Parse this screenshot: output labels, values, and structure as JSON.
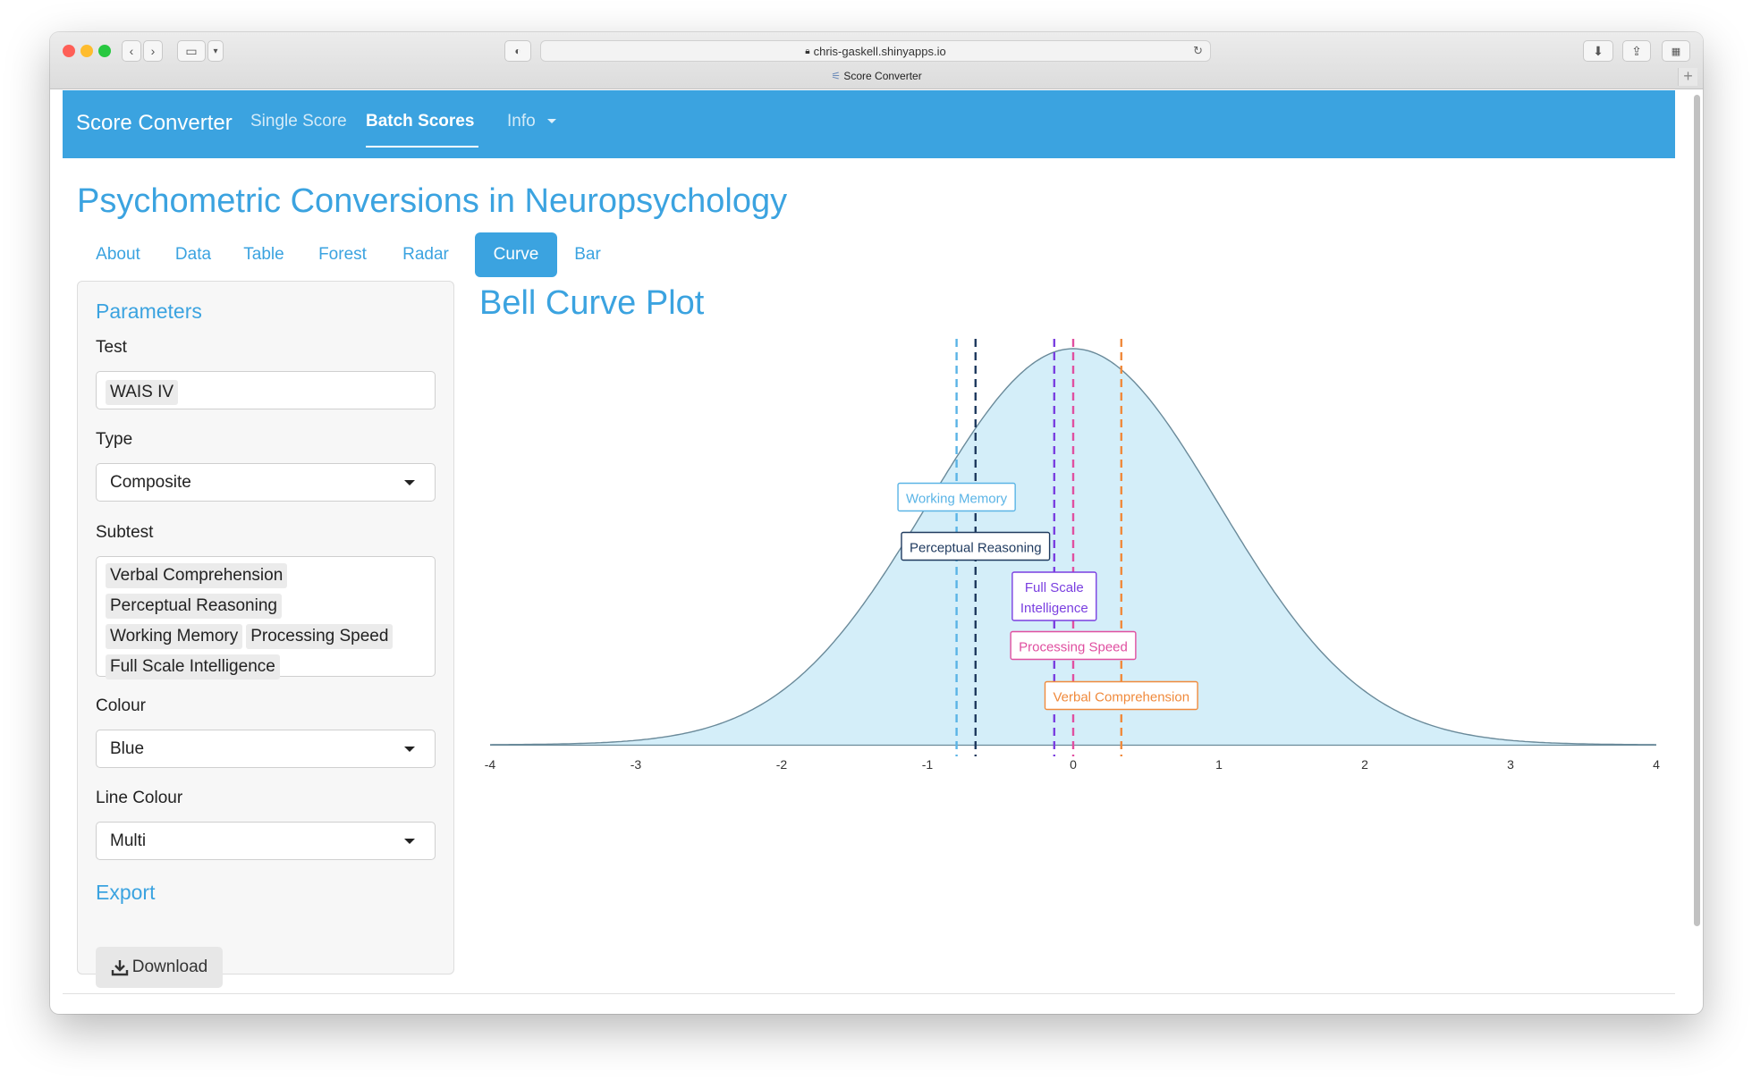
{
  "browser": {
    "url": "chris-gaskell.shinyapps.io",
    "tab_title": "Score Converter"
  },
  "navbar": {
    "brand": "Score Converter",
    "links": [
      "Single Score",
      "Batch Scores",
      "Info"
    ],
    "active": "Batch Scores"
  },
  "page_title": "Psychometric Conversions in Neuropsychology",
  "tabs": [
    "About",
    "Data",
    "Table",
    "Forest",
    "Radar",
    "Curve",
    "Bar"
  ],
  "active_tab": "Curve",
  "sidebar": {
    "parameters_title": "Parameters",
    "test_label": "Test",
    "test_value": "WAIS IV",
    "type_label": "Type",
    "type_value": "Composite",
    "subtest_label": "Subtest",
    "subtests": [
      "Verbal Comprehension",
      "Perceptual Reasoning",
      "Working Memory",
      "Processing Speed",
      "Full Scale Intelligence"
    ],
    "colour_label": "Colour",
    "colour_value": "Blue",
    "line_colour_label": "Line Colour",
    "line_colour_value": "Multi",
    "export_title": "Export",
    "download_label": "Download"
  },
  "chart_title": "Bell Curve Plot",
  "chart_data": {
    "type": "area",
    "title": "Bell Curve Plot",
    "x_ticks": [
      -4,
      -3,
      -2,
      -1,
      0,
      1,
      2,
      3,
      4
    ],
    "xlim": [
      -4,
      4
    ],
    "fill_color": "#d4eef9",
    "curve_color": "#6a8a9a",
    "markers": [
      {
        "name": "Working Memory",
        "z": -0.8,
        "color": "#5ab4e6"
      },
      {
        "name": "Perceptual Reasoning",
        "z": -0.67,
        "color": "#1f3a5f"
      },
      {
        "name": "Full Scale Intelligence",
        "display": [
          "Full Scale",
          "Intelligence"
        ],
        "z": -0.13,
        "color": "#7a3fe0"
      },
      {
        "name": "Processing Speed",
        "z": 0.0,
        "color": "#e04fa0"
      },
      {
        "name": "Verbal Comprehension",
        "z": 0.33,
        "color": "#f08a3c"
      }
    ]
  },
  "colors": {
    "accent": "#3ba3e0"
  }
}
